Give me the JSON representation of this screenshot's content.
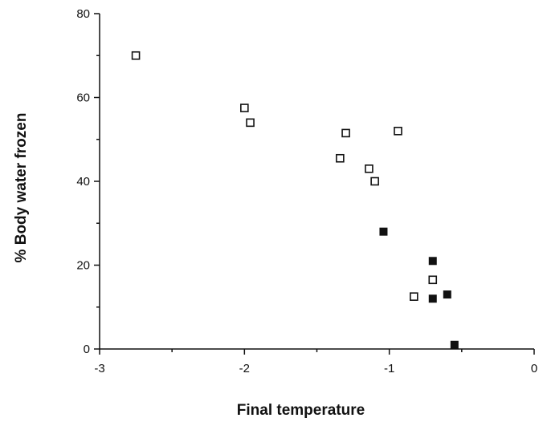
{
  "chart_data": {
    "type": "scatter",
    "title": "",
    "xlabel": "Final temperature",
    "ylabel": "% Body water frozen",
    "xlim": [
      -3,
      0
    ],
    "ylim": [
      0,
      80
    ],
    "x_ticks": [
      -3,
      -2,
      -1,
      0
    ],
    "x_tick_labels": [
      "-3",
      "-2",
      "-1",
      "0"
    ],
    "y_ticks": [
      0,
      20,
      40,
      60,
      80
    ],
    "y_tick_labels": [
      "0",
      "20",
      "40",
      "60",
      "80"
    ],
    "grid": false,
    "legend": "none",
    "series": [
      {
        "marker": "open-square",
        "color": "#111111",
        "points": [
          {
            "x": -2.75,
            "y": 70.0
          },
          {
            "x": -2.0,
            "y": 57.5
          },
          {
            "x": -1.96,
            "y": 54.0
          },
          {
            "x": -1.3,
            "y": 51.5
          },
          {
            "x": -0.94,
            "y": 52.0
          },
          {
            "x": -1.34,
            "y": 45.5
          },
          {
            "x": -1.14,
            "y": 43.0
          },
          {
            "x": -1.1,
            "y": 40.0
          },
          {
            "x": -0.7,
            "y": 16.5
          },
          {
            "x": -0.83,
            "y": 12.5
          }
        ]
      },
      {
        "marker": "filled-square",
        "color": "#111111",
        "points": [
          {
            "x": -1.04,
            "y": 28.0
          },
          {
            "x": -0.7,
            "y": 21.0
          },
          {
            "x": -0.6,
            "y": 13.0
          },
          {
            "x": -0.7,
            "y": 12.0
          },
          {
            "x": -0.55,
            "y": 1.0
          }
        ]
      }
    ]
  }
}
